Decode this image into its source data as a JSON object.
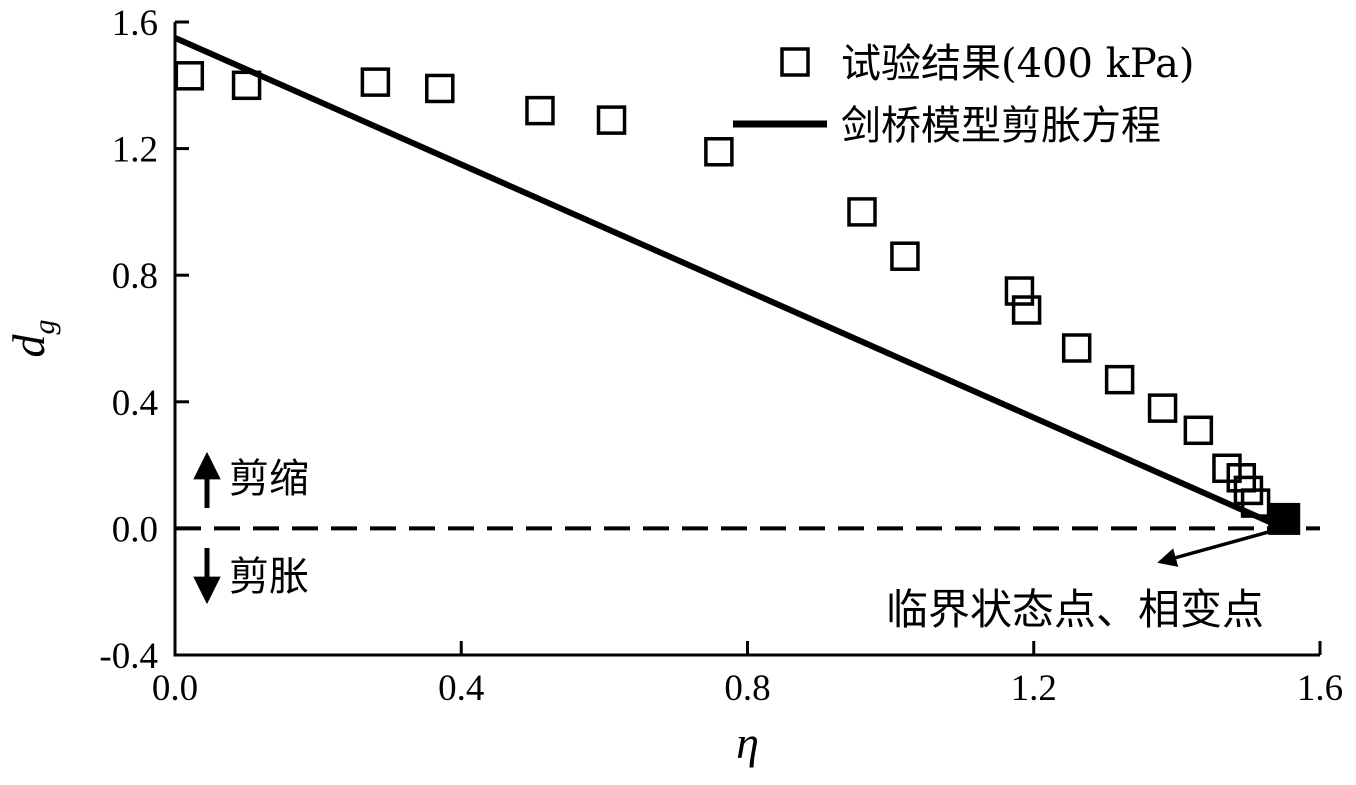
{
  "figure": {
    "background": "#ffffff"
  },
  "chart_data": {
    "type": "scatter",
    "title": "",
    "xlabel": "η",
    "ylabel": "d",
    "ylabel_subscript": "g",
    "xlim": [
      0.0,
      1.6
    ],
    "ylim": [
      -0.4,
      1.6
    ],
    "x_tick_values": [
      0.0,
      0.4,
      0.8,
      1.2,
      1.6
    ],
    "x_tick_labels": [
      "0.0",
      "0.4",
      "0.8",
      "1.2",
      "1.6"
    ],
    "y_tick_values": [
      -0.4,
      0.0,
      0.4,
      0.8,
      1.2,
      1.6
    ],
    "y_tick_labels": [
      "-0.4",
      "0.0",
      "0.4",
      "0.8",
      "1.2",
      "1.6"
    ],
    "grid": false,
    "legend_position": "top-right-inside",
    "colors": {
      "axis": "#000000",
      "line": "#000000",
      "marker": "#000000",
      "background": "#ffffff"
    },
    "series": [
      {
        "name": "试验结果(400 kPa)",
        "type": "scatter",
        "marker": "open-square",
        "points": [
          [
            0.02,
            1.43
          ],
          [
            0.1,
            1.4
          ],
          [
            0.28,
            1.41
          ],
          [
            0.37,
            1.39
          ],
          [
            0.51,
            1.32
          ],
          [
            0.61,
            1.29
          ],
          [
            0.76,
            1.19
          ],
          [
            0.96,
            1.0
          ],
          [
            1.02,
            0.86
          ],
          [
            1.18,
            0.75
          ],
          [
            1.19,
            0.69
          ],
          [
            1.26,
            0.57
          ],
          [
            1.32,
            0.47
          ],
          [
            1.38,
            0.38
          ],
          [
            1.43,
            0.31
          ],
          [
            1.47,
            0.19
          ],
          [
            1.49,
            0.16
          ],
          [
            1.5,
            0.12
          ],
          [
            1.51,
            0.08
          ]
        ]
      },
      {
        "name": "剑桥模型剪胀方程",
        "type": "line",
        "points": [
          [
            0.0,
            1.55
          ],
          [
            1.55,
            0.0
          ]
        ]
      }
    ],
    "zero_line": {
      "y": 0.0,
      "style": "dashed"
    },
    "critical_point": {
      "x": 1.55,
      "y": 0.03,
      "marker": "filled-square"
    },
    "annotations": {
      "shear_contraction": {
        "text": "剪缩",
        "arrow": "up"
      },
      "shear_dilation": {
        "text": "剪胀",
        "arrow": "down"
      },
      "critical_label": {
        "text": "临界状态点、相变点",
        "arrow": "to-critical-point"
      }
    }
  }
}
